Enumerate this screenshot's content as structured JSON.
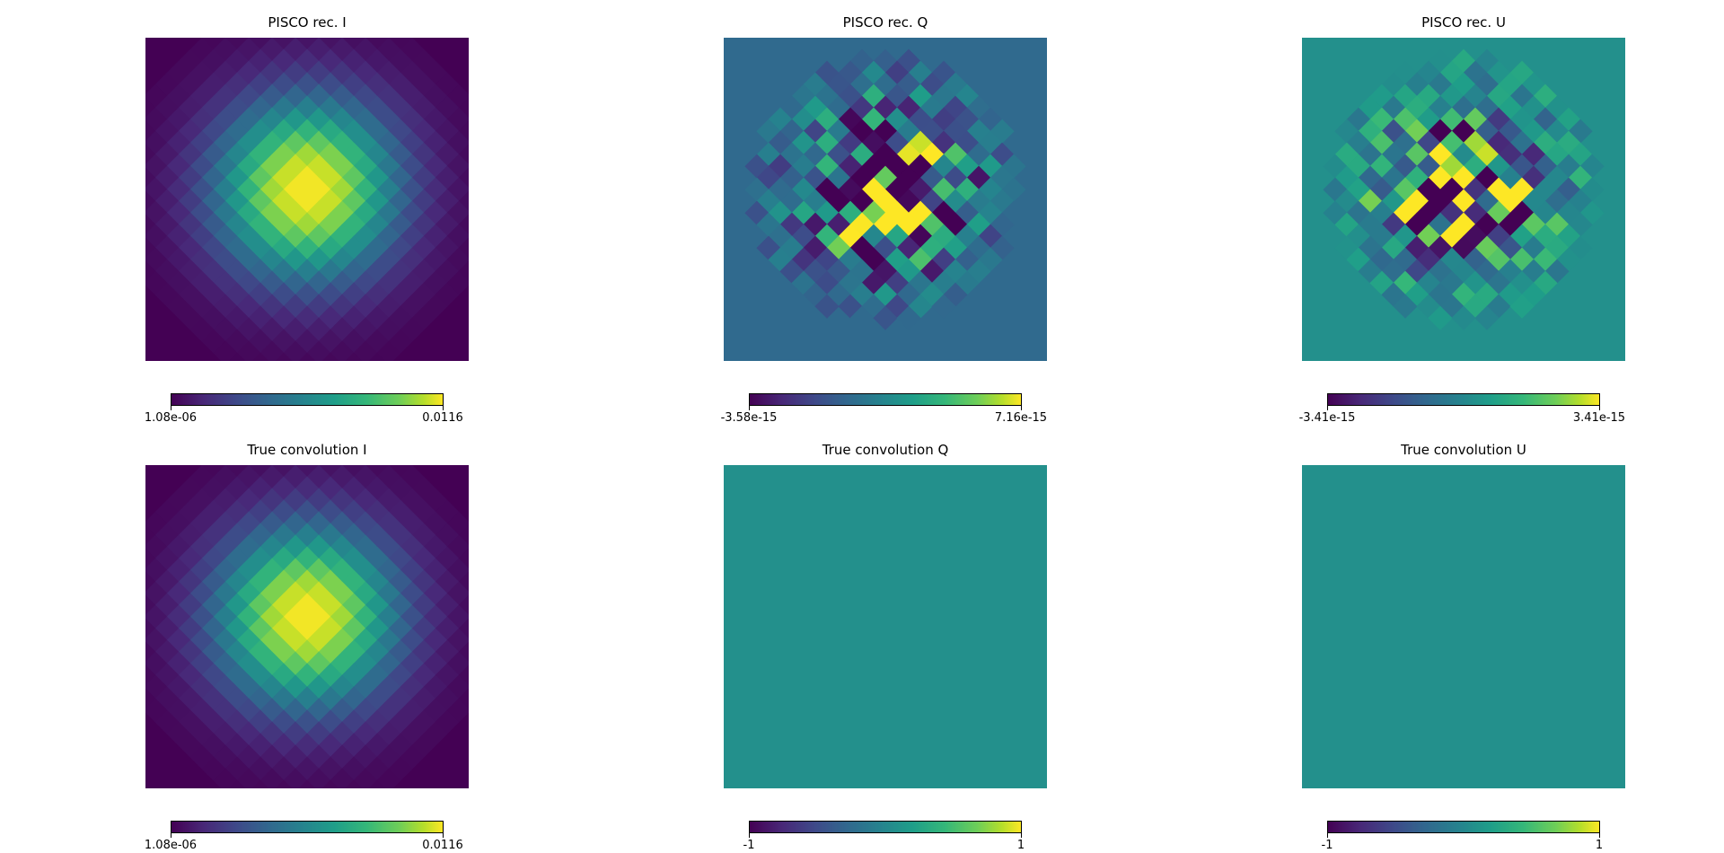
{
  "chart_data": [
    {
      "type": "heatmap",
      "title": "PISCO rec. I",
      "field": "I",
      "colormap": "viridis",
      "colorbar": {
        "min": "1.08e-06",
        "max": "0.0116"
      },
      "pattern": "gaussian-beam"
    },
    {
      "type": "heatmap",
      "title": "PISCO rec. Q",
      "field": "Q",
      "colormap": "viridis",
      "colorbar": {
        "min": "-3.58e-15",
        "max": "7.16e-15"
      },
      "pattern": "noise-residual"
    },
    {
      "type": "heatmap",
      "title": "PISCO rec. U",
      "field": "U",
      "colormap": "viridis",
      "colorbar": {
        "min": "-3.41e-15",
        "max": "3.41e-15"
      },
      "pattern": "noise-residual"
    },
    {
      "type": "heatmap",
      "title": "True convolution I",
      "field": "I",
      "colormap": "viridis",
      "colorbar": {
        "min": "1.08e-06",
        "max": "0.0116"
      },
      "pattern": "gaussian-beam"
    },
    {
      "type": "heatmap",
      "title": "True convolution Q",
      "field": "Q",
      "colormap": "viridis",
      "colorbar": {
        "min": "-1",
        "max": "1"
      },
      "pattern": "uniform"
    },
    {
      "type": "heatmap",
      "title": "True convolution U",
      "field": "U",
      "colormap": "viridis",
      "colorbar": {
        "min": "-1",
        "max": "1"
      },
      "pattern": "uniform"
    }
  ]
}
